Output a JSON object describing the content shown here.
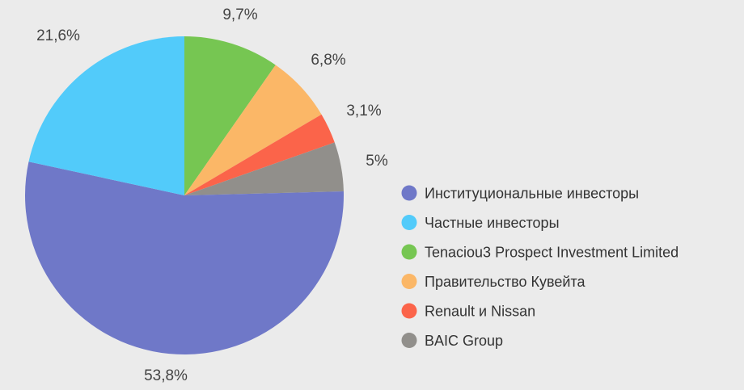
{
  "chart_data": {
    "type": "pie",
    "title": "",
    "categories": [
      "Институциональные инвесторы",
      "Частные инвесторы",
      "Tenaciou3 Prospect Investment Limited",
      "Правительство Кувейта",
      "Renault и Nissan",
      "BAIC Group"
    ],
    "values": [
      53.8,
      21.6,
      9.7,
      6.8,
      3.1,
      5
    ],
    "value_labels": [
      "53,8%",
      "21,6%",
      "9,7%",
      "6,8%",
      "3,1%",
      "5%"
    ],
    "colors": [
      "#6f78c8",
      "#52cbfa",
      "#76c652",
      "#fbb767",
      "#fb644a",
      "#918f8b"
    ],
    "legend_placement": "right"
  }
}
